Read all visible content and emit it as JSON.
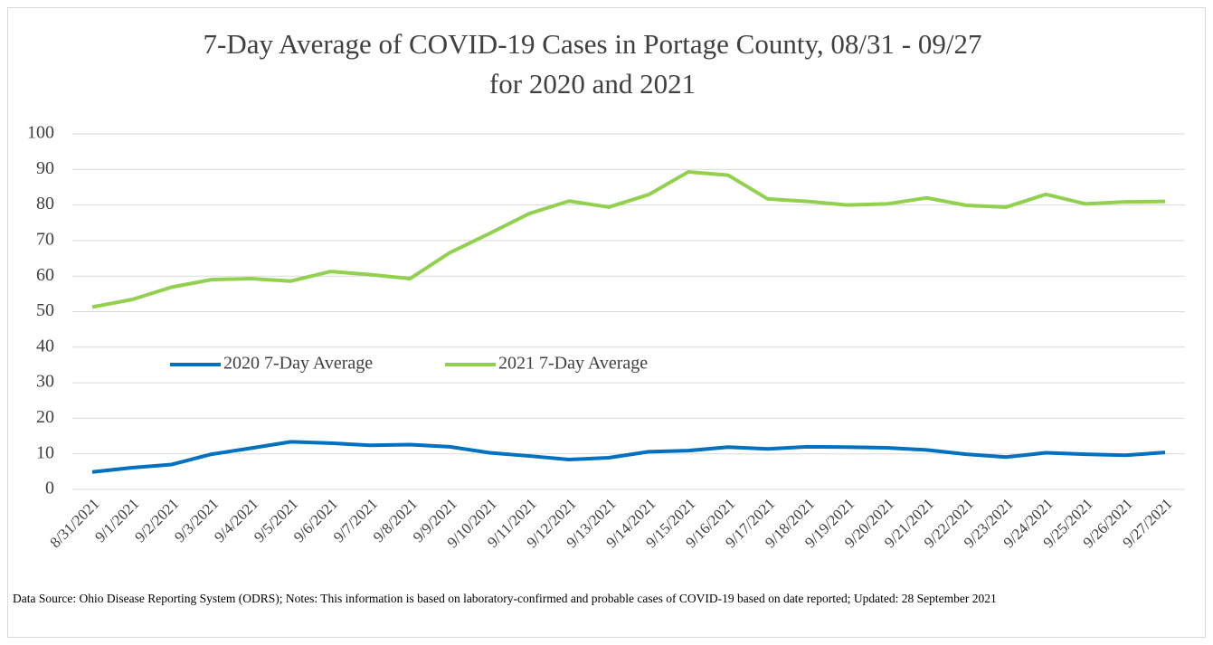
{
  "chart_data": {
    "type": "line",
    "title_lines": [
      "7-Day Average of COVID-19 Cases in Portage County, 08/31 - 09/27",
      "for 2020 and 2021"
    ],
    "categories": [
      "8/31/2021",
      "9/1/2021",
      "9/2/2021",
      "9/3/2021",
      "9/4/2021",
      "9/5/2021",
      "9/6/2021",
      "9/7/2021",
      "9/8/2021",
      "9/9/2021",
      "9/10/2021",
      "9/11/2021",
      "9/12/2021",
      "9/13/2021",
      "9/14/2021",
      "9/15/2021",
      "9/16/2021",
      "9/17/2021",
      "9/18/2021",
      "9/19/2021",
      "9/20/2021",
      "9/21/2021",
      "9/22/2021",
      "9/23/2021",
      "9/24/2021",
      "9/25/2021",
      "9/26/2021",
      "9/27/2021"
    ],
    "series": [
      {
        "name": "2020 7-Day Average",
        "color": "#0070c0",
        "values": [
          4.9,
          6.1,
          7.0,
          9.9,
          11.6,
          13.4,
          13.0,
          12.4,
          12.6,
          12.0,
          10.3,
          9.4,
          8.4,
          8.9,
          10.6,
          10.9,
          11.9,
          11.4,
          12.0,
          11.9,
          11.7,
          11.1,
          9.9,
          9.1,
          10.3,
          9.9,
          9.6,
          10.4
        ]
      },
      {
        "name": "2021 7-Day Average",
        "color": "#92d050",
        "values": [
          51.3,
          53.4,
          56.9,
          59.0,
          59.3,
          58.6,
          61.3,
          60.4,
          59.3,
          66.6,
          72.0,
          77.6,
          81.1,
          79.4,
          82.9,
          89.3,
          88.4,
          81.7,
          81.0,
          80.0,
          80.3,
          82.0,
          79.9,
          79.4,
          83.0,
          80.3,
          80.9,
          81.0
        ]
      }
    ],
    "ylim": [
      0,
      100
    ],
    "yticks": [
      0,
      10,
      20,
      30,
      40,
      50,
      60,
      70,
      80,
      90,
      100
    ],
    "grid": true,
    "note": "Data Source: Ohio Disease Reporting System (ODRS); Notes: This information is based on laboratory-confirmed and probable cases of COVID-19 based on date reported; Updated: 28 September 2021"
  }
}
